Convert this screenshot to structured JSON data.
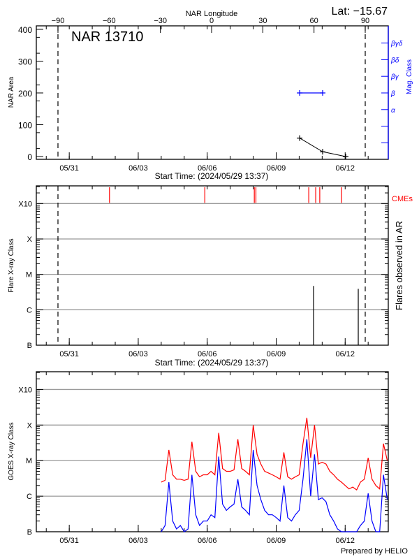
{
  "header": {
    "lat_label": "Lat: −15.67",
    "footer": "Prepared by HELIO"
  },
  "time_axis": {
    "start": "2024-05-29T13:37",
    "end": "2024-06-13T21:00",
    "tick_labels": [
      {
        "date": "2024-05-31",
        "label": "05/31"
      },
      {
        "date": "2024-06-03",
        "label": "06/03"
      },
      {
        "date": "2024-06-06",
        "label": "06/06"
      },
      {
        "date": "2024-06-09",
        "label": "06/09"
      },
      {
        "date": "2024-06-12",
        "label": "06/12"
      }
    ],
    "xlabel": "Start Time: (2024/05/29 13:37)"
  },
  "chart_data": [
    {
      "type": "line",
      "title": "NAR 13710",
      "ylabel": "NAR Area",
      "ylim": [
        0,
        400
      ],
      "yticks": [
        0,
        100,
        200,
        300,
        400
      ],
      "top_axis": {
        "label": "NAR Longitude",
        "ticks": [
          -90,
          -60,
          -30,
          0,
          30,
          60,
          90
        ],
        "limb_markers": [
          -90,
          90
        ]
      },
      "right_axis": {
        "label": "Mag. Class",
        "classes": [
          "α",
          "β",
          "βγ",
          "βδ",
          "βγδ"
        ],
        "color": "#0000ff"
      },
      "area_series": [
        {
          "time": "2024-06-10T00:30",
          "area": 58
        },
        {
          "time": "2024-06-11T00:30",
          "area": 15
        },
        {
          "time": "2024-06-12T00:30",
          "area": 0
        }
      ],
      "mag_class_series": [
        {
          "time": "2024-06-10T00:30",
          "class": "β"
        },
        {
          "time": "2024-06-11T00:30",
          "class": "β"
        }
      ]
    },
    {
      "type": "bar",
      "ylabel": "Flare X-ray Class",
      "right_label": "Flares observed in AR",
      "yscale": "log",
      "ylim": [
        1e-07,
        0.00316
      ],
      "class_ticks": [
        {
          "label": "B",
          "flux": 1e-07
        },
        {
          "label": "C",
          "flux": 1e-06
        },
        {
          "label": "M",
          "flux": 1e-05
        },
        {
          "label": "X",
          "flux": 0.0001
        },
        {
          "label": "X10",
          "flux": 0.001
        }
      ],
      "grid": true,
      "limb_markers": [
        -90,
        90
      ],
      "cme_label": "CMEs",
      "cme_color": "#ff0000",
      "cme_times": [
        "2024-06-01T18:00",
        "2024-06-05T21:30",
        "2024-06-08T01:10",
        "2024-06-08T02:50",
        "2024-06-10T10:00",
        "2024-06-10T17:15",
        "2024-06-10T21:30",
        "2024-06-11T20:10"
      ],
      "flares": [
        {
          "time": "2024-06-10T15:00",
          "flux": 4.7e-06
        },
        {
          "time": "2024-06-12T13:40",
          "flux": 3.9e-06
        }
      ]
    },
    {
      "type": "line",
      "ylabel": "GOES X-ray Class",
      "yscale": "log",
      "ylim": [
        1e-07,
        0.00316
      ],
      "class_ticks": [
        {
          "label": "B",
          "flux": 1e-07
        },
        {
          "label": "C",
          "flux": 1e-06
        },
        {
          "label": "M",
          "flux": 1e-05
        },
        {
          "label": "X",
          "flux": 0.0001
        },
        {
          "label": "X10",
          "flux": 0.001
        }
      ],
      "grid": true,
      "series": [
        {
          "color": "#ff0000",
          "start": "2024-06-04T00:00",
          "step_hours": 4,
          "flux": [
            2.5e-06,
            2.8e-06,
            2e-05,
            4e-06,
            3e-06,
            3e-06,
            2.8e-06,
            3e-06,
            3.4e-05,
            5e-06,
            3.5e-06,
            4e-06,
            4e-06,
            5e-06,
            4e-06,
            6e-05,
            6e-06,
            5e-06,
            5e-06,
            5.5e-06,
            4e-05,
            6e-06,
            5e-06,
            4e-06,
            0.0001,
            1.5e-05,
            8e-06,
            5e-06,
            4.5e-06,
            4e-06,
            3.5e-06,
            3e-06,
            1.7e-05,
            3.5e-06,
            3e-06,
            3.5e-06,
            4e-06,
            3e-05,
            0.00016,
            1.2e-05,
            0.0001,
            8e-06,
            9e-06,
            8e-06,
            5e-06,
            4e-06,
            3e-06,
            2.5e-06,
            2e-06,
            1.6e-06,
            1.8e-06,
            1.5e-06,
            2.5e-06,
            3e-06,
            1.2e-05,
            3e-06,
            2e-06,
            1.6e-06,
            3e-05,
            1e-05
          ]
        },
        {
          "color": "#0000ff",
          "start": "2024-06-04T00:00",
          "step_hours": 4,
          "flux": [
            8e-08,
            1.5e-07,
            2.5e-06,
            2e-07,
            1.2e-07,
            1.5e-07,
            1e-07,
            1.2e-07,
            4e-06,
            3e-07,
            1.5e-07,
            2e-07,
            2e-07,
            3e-07,
            2.5e-07,
            1.3e-05,
            6e-07,
            4e-07,
            5e-07,
            6e-07,
            3e-06,
            5e-07,
            4e-07,
            3e-07,
            2e-05,
            2e-06,
            8e-07,
            4e-07,
            3e-07,
            3e-07,
            2.5e-07,
            2e-07,
            2e-06,
            2.5e-07,
            2e-07,
            3e-07,
            4e-07,
            3e-06,
            4e-05,
            1e-06,
            1.5e-05,
            8e-07,
            9e-07,
            7e-07,
            3e-07,
            2e-07,
            1.2e-07,
            8e-08,
            5e-08,
            5e-08,
            6e-08,
            5e-08,
            1.5e-07,
            2e-07,
            1.2e-06,
            2e-07,
            1e-07,
            8e-08,
            4e-06,
            8e-07
          ]
        }
      ]
    }
  ]
}
